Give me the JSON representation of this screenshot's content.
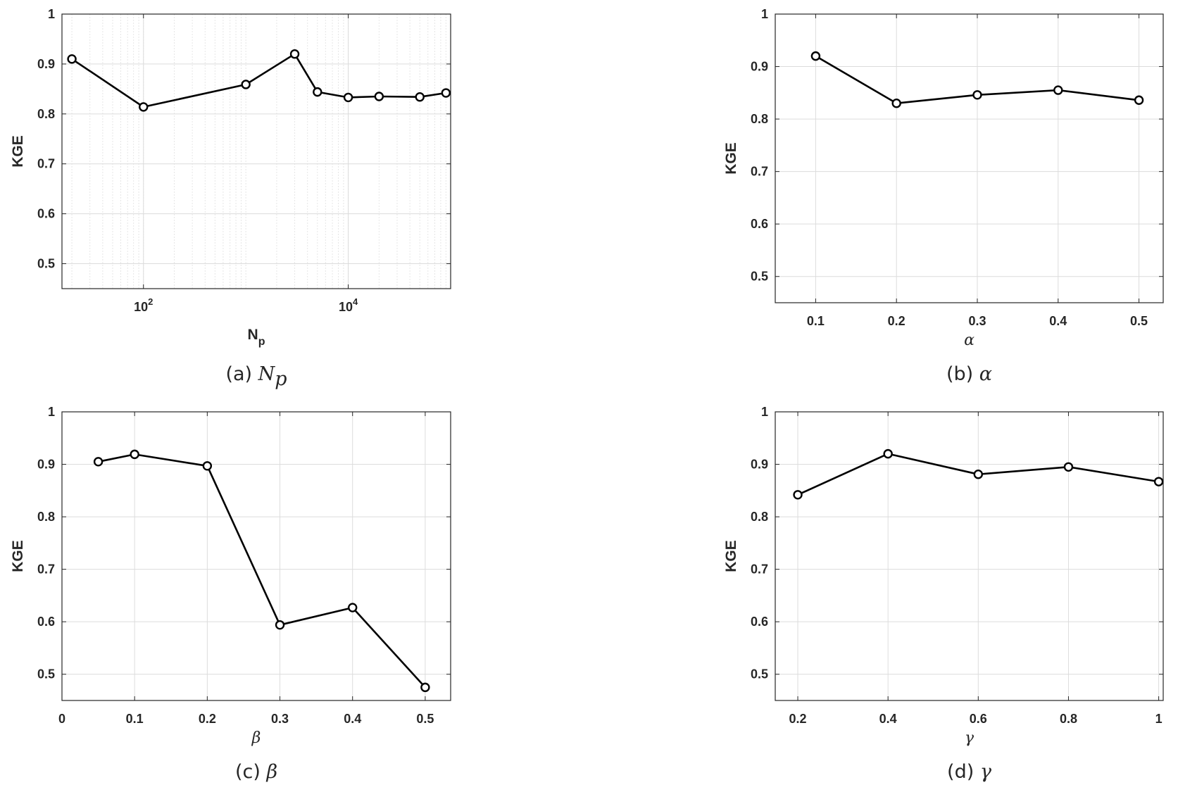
{
  "chart_data": [
    {
      "type": "line",
      "caption": {
        "prefix": "(a)",
        "symbol": "N",
        "subscript": "p"
      },
      "xlabel": {
        "main": "N",
        "sub": "p"
      },
      "ylabel": "KGE",
      "xscale": "log",
      "xlim": [
        16,
        100000
      ],
      "ylim": [
        0.45,
        1
      ],
      "xticks": [
        100,
        10000
      ],
      "xtick_labels": [
        {
          "base": "10",
          "exp": "2"
        },
        {
          "base": "10",
          "exp": "4"
        }
      ],
      "yticks": [
        0.5,
        0.6,
        0.7,
        0.8,
        0.9,
        1
      ],
      "ytick_labels": [
        "0.5",
        "0.6",
        "0.7",
        "0.8",
        "0.9",
        "1"
      ],
      "grid": true,
      "minor_grid": true,
      "marker": "circle",
      "line_color": "#000000",
      "x": [
        20,
        100,
        1000,
        3000,
        5000,
        10000,
        20000,
        50000,
        90000
      ],
      "y": [
        0.91,
        0.814,
        0.859,
        0.92,
        0.844,
        0.833,
        0.835,
        0.834,
        0.842
      ]
    },
    {
      "type": "line",
      "caption": {
        "prefix": "(b)",
        "symbol": "α"
      },
      "xlabel": {
        "main": "α"
      },
      "ylabel": "KGE",
      "xscale": "linear",
      "xlim": [
        0.05,
        0.53
      ],
      "ylim": [
        0.45,
        1
      ],
      "xticks": [
        0.1,
        0.2,
        0.3,
        0.4,
        0.5
      ],
      "xtick_labels": [
        "0.1",
        "0.2",
        "0.3",
        "0.4",
        "0.5"
      ],
      "yticks": [
        0.5,
        0.6,
        0.7,
        0.8,
        0.9,
        1
      ],
      "ytick_labels": [
        "0.5",
        "0.6",
        "0.7",
        "0.8",
        "0.9",
        "1"
      ],
      "grid": true,
      "minor_grid": false,
      "marker": "circle",
      "line_color": "#000000",
      "x": [
        0.1,
        0.2,
        0.3,
        0.4,
        0.5
      ],
      "y": [
        0.92,
        0.83,
        0.846,
        0.855,
        0.836
      ]
    },
    {
      "type": "line",
      "caption": {
        "prefix": "(c)",
        "symbol": "β"
      },
      "xlabel": {
        "main": "β"
      },
      "ylabel": "KGE",
      "xscale": "linear",
      "xlim": [
        0,
        0.535
      ],
      "ylim": [
        0.45,
        1
      ],
      "xticks": [
        0,
        0.1,
        0.2,
        0.3,
        0.4,
        0.5
      ],
      "xtick_labels": [
        "0",
        "0.1",
        "0.2",
        "0.3",
        "0.4",
        "0.5"
      ],
      "yticks": [
        0.5,
        0.6,
        0.7,
        0.8,
        0.9,
        1
      ],
      "ytick_labels": [
        "0.5",
        "0.6",
        "0.7",
        "0.8",
        "0.9",
        "1"
      ],
      "grid": true,
      "minor_grid": false,
      "marker": "circle",
      "line_color": "#000000",
      "x": [
        0.05,
        0.1,
        0.2,
        0.3,
        0.4,
        0.5
      ],
      "y": [
        0.905,
        0.919,
        0.897,
        0.594,
        0.627,
        0.475
      ]
    },
    {
      "type": "line",
      "caption": {
        "prefix": "(d)",
        "symbol": "γ"
      },
      "xlabel": {
        "main": "γ"
      },
      "ylabel": "KGE",
      "xscale": "linear",
      "xlim": [
        0.15,
        1.01
      ],
      "ylim": [
        0.45,
        1
      ],
      "xticks": [
        0.2,
        0.4,
        0.6,
        0.8,
        1
      ],
      "xtick_labels": [
        "0.2",
        "0.4",
        "0.6",
        "0.8",
        "1"
      ],
      "yticks": [
        0.5,
        0.6,
        0.7,
        0.8,
        0.9,
        1
      ],
      "ytick_labels": [
        "0.5",
        "0.6",
        "0.7",
        "0.8",
        "0.9",
        "1"
      ],
      "grid": true,
      "minor_grid": false,
      "marker": "circle",
      "line_color": "#000000",
      "x": [
        0.2,
        0.4,
        0.6,
        0.8,
        1
      ],
      "y": [
        0.842,
        0.92,
        0.881,
        0.895,
        0.867
      ]
    }
  ]
}
